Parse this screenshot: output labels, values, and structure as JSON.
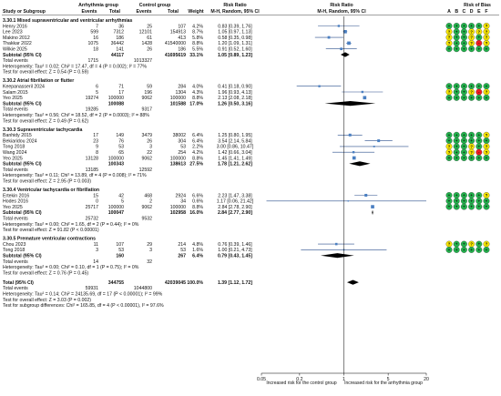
{
  "chart_data": {
    "type": "forest",
    "headers": {
      "group1": "Arrhythmia group",
      "group2": "Control group",
      "effect": "Risk Ratio",
      "col_study": "Study or Subgroup",
      "col_events1": "Events",
      "col_total1": "Total",
      "col_events2": "Events",
      "col_total2": "Total",
      "col_weight": "Weight",
      "col_ci": "M-H, Random, 95% CI",
      "col_plot": "M-H, Random, 95% CI",
      "col_bias": "Risk of Bias",
      "bias_letters": [
        "A",
        "B",
        "C",
        "D",
        "E",
        "F"
      ]
    },
    "subgroups": [
      {
        "title": "3.30.1 Mixed supraventricular and ventricular arrhythmias",
        "studies": [
          {
            "name": "Henry 2016",
            "e1": "7",
            "t1": "36",
            "e2": "25",
            "t2": "107",
            "weight": "4.2%",
            "ci": "0.83 [0.39, 1.76]",
            "rr": 0.83,
            "lo": 0.39,
            "hi": 1.76,
            "bias": [
              "g",
              "g",
              "g",
              "g",
              "g",
              "y"
            ]
          },
          {
            "name": "Lee 2023",
            "e1": "599",
            "t1": "7312",
            "e2": "12101",
            "t2": "154913",
            "weight": "8.7%",
            "ci": "1.05 [0.97, 1.13]",
            "rr": 1.05,
            "lo": 0.97,
            "hi": 1.13,
            "bias": [
              "y",
              "g",
              "g",
              "y",
              "y",
              "y"
            ]
          },
          {
            "name": "Makino 2012",
            "e1": "16",
            "t1": "186",
            "e2": "61",
            "t2": "413",
            "weight": "5.8%",
            "ci": "0.58 [0.35, 0.98]",
            "rr": 0.58,
            "lo": 0.35,
            "hi": 0.98,
            "bias": [
              "y",
              "g",
              "g",
              "y",
              "g",
              "y"
            ]
          },
          {
            "name": "Thakkar 2022",
            "e1": "1075",
            "t1": "36442",
            "e2": "1428",
            "t2": "41540000",
            "weight": "8.8%",
            "ci": "1.20 [1.09, 1.31]",
            "rr": 1.2,
            "lo": 1.09,
            "hi": 1.31,
            "bias": [
              "y",
              "g",
              "g",
              "y",
              "r",
              "y"
            ]
          },
          {
            "name": "Wilkie 2025",
            "e1": "18",
            "t1": "141",
            "e2": "26",
            "t2": "186",
            "weight": "5.5%",
            "ci": "0.91 [0.52, 1.60]",
            "rr": 0.91,
            "lo": 0.52,
            "hi": 1.6,
            "bias": [
              "g",
              "g",
              "g",
              "g",
              "g",
              "g"
            ]
          }
        ],
        "subtotal": {
          "t1": "44117",
          "t2": "41695619",
          "weight": "33.1%",
          "ci": "1.05 [0.89, 1.23]",
          "rr": 1.05,
          "lo": 0.89,
          "hi": 1.23
        },
        "total_events": {
          "e1": "1715",
          "e2": "1013327"
        },
        "heterogeneity": "Heterogeneity: Tau² = 0.02; Chi² = 17.47, df = 4 (P = 0.002); I² = 77%",
        "overall": "Test for overall effect: Z = 0.54 (P = 0.59)"
      },
      {
        "title": "3.30.2 Atrial fibrillation or flutter",
        "studies": [
          {
            "name": "Keepanasseril 2024",
            "e1": "6",
            "t1": "71",
            "e2": "59",
            "t2": "284",
            "weight": "4.0%",
            "ci": "0.41 [0.18, 0.90]",
            "rr": 0.41,
            "lo": 0.18,
            "hi": 0.9,
            "bias": [
              "g",
              "g",
              "g",
              "g",
              "g",
              "g"
            ]
          },
          {
            "name": "Salam 2015",
            "e1": "5",
            "t1": "17",
            "e2": "196",
            "t2": "1304",
            "weight": "4.3%",
            "ci": "1.96 [0.93, 4.13]",
            "rr": 1.96,
            "lo": 0.93,
            "hi": 4.13,
            "bias": [
              "y",
              "g",
              "g",
              "y",
              "r",
              "y"
            ]
          },
          {
            "name": "Yeo 2025",
            "e1": "19274",
            "t1": "100000",
            "e2": "9062",
            "t2": "100000",
            "weight": "8.8%",
            "ci": "2.13 [2.08, 2.18]",
            "rr": 2.13,
            "lo": 2.08,
            "hi": 2.18,
            "bias": [
              "g",
              "g",
              "g",
              "g",
              "g",
              "g"
            ]
          }
        ],
        "subtotal": {
          "t1": "100088",
          "t2": "101588",
          "weight": "17.0%",
          "ci": "1.26 [0.50, 3.16]",
          "rr": 1.26,
          "lo": 0.5,
          "hi": 3.16
        },
        "total_events": {
          "e1": "19285",
          "e2": "9317"
        },
        "heterogeneity": "Heterogeneity: Tau² = 0.56; Chi² = 18.52, df = 2 (P = 0.0003); I² = 88%",
        "overall": "Test for overall effect: Z = 0.49 (P = 0.62)"
      },
      {
        "title": "3.30.3 Supraventricular tachycardia",
        "studies": [
          {
            "name": "Banhidy 2015",
            "e1": "17",
            "t1": "149",
            "e2": "3479",
            "t2": "38002",
            "weight": "6.4%",
            "ci": "1.25 [0.80, 1.95]",
            "rr": 1.25,
            "lo": 0.8,
            "hi": 1.95,
            "bias": [
              "g",
              "g",
              "g",
              "g",
              "g",
              "y"
            ]
          },
          {
            "name": "Bekiaridou 2024",
            "e1": "23",
            "t1": "76",
            "e2": "26",
            "t2": "304",
            "weight": "6.4%",
            "ci": "3.54 [2.14, 5.84]",
            "rr": 3.54,
            "lo": 2.14,
            "hi": 5.84,
            "bias": [
              "g",
              "g",
              "g",
              "g",
              "g",
              "g"
            ]
          },
          {
            "name": "Tong 2018",
            "e1": "9",
            "t1": "53",
            "e2": "3",
            "t2": "53",
            "weight": "2.2%",
            "ci": "3.00 [0.86, 10.47]",
            "rr": 3.0,
            "lo": 0.86,
            "hi": 10.47,
            "bias": [
              "y",
              "g",
              "g",
              "y",
              "g",
              "y"
            ]
          },
          {
            "name": "Wang 2024",
            "e1": "8",
            "t1": "65",
            "e2": "22",
            "t2": "254",
            "weight": "4.2%",
            "ci": "1.42 [0.66, 3.04]",
            "rr": 1.42,
            "lo": 0.66,
            "hi": 3.04,
            "bias": [
              "y",
              "g",
              "g",
              "y",
              "r",
              "y"
            ]
          },
          {
            "name": "Yeo 2025",
            "e1": "13128",
            "t1": "100000",
            "e2": "9062",
            "t2": "100000",
            "weight": "8.8%",
            "ci": "1.45 [1.41, 1.49]",
            "rr": 1.45,
            "lo": 1.41,
            "hi": 1.49,
            "bias": [
              "g",
              "g",
              "g",
              "g",
              "g",
              "g"
            ]
          }
        ],
        "subtotal": {
          "t1": "100343",
          "t2": "138613",
          "weight": "27.5%",
          "ci": "1.78 [1.21, 2.62]",
          "rr": 1.78,
          "lo": 1.21,
          "hi": 2.62
        },
        "total_events": {
          "e1": "13185",
          "e2": "12592"
        },
        "heterogeneity": "Heterogeneity: Tau² = 0.11; Chi² = 13.89, df = 4 (P = 0.008); I² = 71%",
        "overall": "Test for overall effect: Z = 2.95 (P = 0.003)"
      },
      {
        "title": "3.30.4 Ventricular tachycardia or fibrillation",
        "studies": [
          {
            "name": "Ertekin 2016",
            "e1": "15",
            "t1": "42",
            "e2": "468",
            "t2": "2924",
            "weight": "6.6%",
            "ci": "2.23 [1.47, 3.38]",
            "rr": 2.23,
            "lo": 1.47,
            "hi": 3.38,
            "bias": [
              "g",
              "g",
              "g",
              "g",
              "g",
              "y"
            ]
          },
          {
            "name": "Hodes 2016",
            "e1": "0",
            "t1": "5",
            "e2": "2",
            "t2": "34",
            "weight": "0.6%",
            "ci": "1.17 [0.06, 21.42]",
            "rr": 1.17,
            "lo": 0.06,
            "hi": 21.42,
            "bias": [
              "g",
              "g",
              "g",
              "g",
              "g",
              "g"
            ]
          },
          {
            "name": "Yeo 2025",
            "e1": "25717",
            "t1": "100000",
            "e2": "9062",
            "t2": "100000",
            "weight": "8.8%",
            "ci": "2.84 [2.78, 2.90]",
            "rr": 2.84,
            "lo": 2.78,
            "hi": 2.9,
            "bias": [
              "g",
              "g",
              "g",
              "g",
              "g",
              "g"
            ]
          }
        ],
        "subtotal": {
          "t1": "100047",
          "t2": "102958",
          "weight": "16.0%",
          "ci": "2.84 [2.77, 2.90]",
          "rr": 2.84,
          "lo": 2.77,
          "hi": 2.9
        },
        "total_events": {
          "e1": "25732",
          "e2": "9532"
        },
        "heterogeneity": "Heterogeneity: Tau² = 0.00; Chi² = 1.65, df = 2 (P = 0.44); I² = 0%",
        "overall": "Test for overall effect: Z = 91.82 (P < 0.00001)"
      },
      {
        "title": "3.30.5 Premature ventricular contractions",
        "studies": [
          {
            "name": "Chou 2023",
            "e1": "11",
            "t1": "107",
            "e2": "29",
            "t2": "214",
            "weight": "4.8%",
            "ci": "0.76 [0.39, 1.46]",
            "rr": 0.76,
            "lo": 0.39,
            "hi": 1.46,
            "bias": [
              "y",
              "g",
              "g",
              "y",
              "g",
              "y"
            ]
          },
          {
            "name": "Tong 2018",
            "e1": "3",
            "t1": "53",
            "e2": "3",
            "t2": "53",
            "weight": "1.6%",
            "ci": "1.00 [0.21, 4.73]",
            "rr": 1.0,
            "lo": 0.21,
            "hi": 4.73,
            "bias": [
              "g",
              "g",
              "g",
              "g",
              "g",
              "g"
            ]
          }
        ],
        "subtotal": {
          "t1": "160",
          "t2": "267",
          "weight": "6.4%",
          "ci": "0.79 [0.43, 1.45]",
          "rr": 0.79,
          "lo": 0.43,
          "hi": 1.45
        },
        "total_events": {
          "e1": "14",
          "e2": "32"
        },
        "heterogeneity": "Heterogeneity: Tau² = 0.00; Chi² = 0.10, df = 1 (P = 0.75); I² = 0%",
        "overall": "Test for overall effect: Z = 0.76 (P = 0.45)"
      }
    ],
    "total": {
      "label": "Total (95% CI)",
      "t1": "344755",
      "t2": "42039045",
      "weight": "100.0%",
      "ci": "1.39 [1.12, 1.72]",
      "rr": 1.39,
      "lo": 1.12,
      "hi": 1.72,
      "e1": "59931",
      "e2": "1044800"
    },
    "total_events_label": "Total events",
    "subtotal_label": "Subtotal (95% CI)",
    "footer": {
      "heterogeneity": "Heterogeneity: Tau² = 0.14; Chi² = 24135.69, df = 17 (P < 0.00001); I² = 99%",
      "overall": "Test for overall effect: Z = 3.03 (P = 0.002)",
      "subgroup_diff": "Test for subgroup differences: Chi² = 165.85, df = 4 (P < 0.00001), I² = 97.6%"
    },
    "x_axis": {
      "scale": "log",
      "ticks": [
        0.05,
        0.2,
        1,
        5,
        20
      ],
      "tick_labels": [
        "0.05",
        "0.2",
        "1",
        "5",
        "20"
      ],
      "xlim": [
        0.05,
        20
      ],
      "left_label": "Increased risk for the control group",
      "right_label": "Increased risk for the arrhythmia group"
    },
    "colors": {
      "square": "#4a7fc1",
      "line": "#2b4f8c",
      "diamond": "#000000",
      "bias_green": "#22b14c",
      "bias_yellow": "#f5e400",
      "bias_red": "#ed1c24"
    }
  }
}
